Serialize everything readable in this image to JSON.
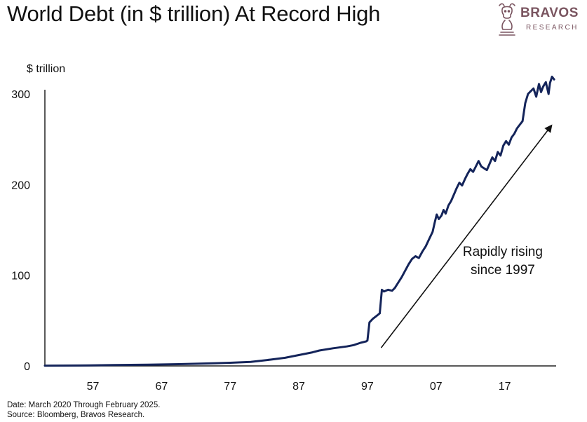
{
  "header": {
    "title": "World Debt (in $ trillion) At Record High"
  },
  "brand": {
    "name": "BRAVOS",
    "subtitle": "RESEARCH",
    "color": "#7a5560",
    "icon": "bull-chess-knight-icon"
  },
  "footer": {
    "date_note": "Date: March 2020 Through February 2025.",
    "source_note": "Source: Bloomberg, Bravos Research."
  },
  "chart_data": {
    "type": "line",
    "title": "World Debt (in $ trillion) At Record High",
    "ylabel": "$ trillion",
    "xlabel": "",
    "xlim": [
      1950,
      2024.5
    ],
    "ylim": [
      0,
      300
    ],
    "xticks": [
      {
        "value": 1957,
        "label": "57"
      },
      {
        "value": 1967,
        "label": "67"
      },
      {
        "value": 1977,
        "label": "77"
      },
      {
        "value": 1987,
        "label": "87"
      },
      {
        "value": 1997,
        "label": "97"
      },
      {
        "value": 2007,
        "label": "07"
      },
      {
        "value": 2017,
        "label": "17"
      }
    ],
    "yticks": [
      0,
      100,
      200,
      300
    ],
    "grid": false,
    "line_color": "#14245a",
    "series": [
      {
        "x": [
          1950,
          1955,
          1960,
          1965,
          1970,
          1975,
          1977,
          1980,
          1983,
          1985,
          1987,
          1989,
          1990,
          1992,
          1994,
          1995,
          1996,
          1996.8,
          1997,
          1997.3,
          1997.8,
          1998.3,
          1998.8,
          1999.1,
          1999.4,
          2000,
          2000.6,
          2001,
          2001.5,
          2002,
          2002.5,
          2003,
          2003.5,
          2004,
          2004.5,
          2005,
          2005.5,
          2006,
          2006.5,
          2006.8,
          2007.1,
          2007.4,
          2007.8,
          2008.1,
          2008.4,
          2008.8,
          2009.2,
          2009.6,
          2010,
          2010.4,
          2010.8,
          2011.2,
          2011.6,
          2012,
          2012.4,
          2012.8,
          2013.2,
          2013.6,
          2014,
          2014.4,
          2014.8,
          2015.2,
          2015.6,
          2016,
          2016.4,
          2016.8,
          2017.2,
          2017.6,
          2018,
          2018.4,
          2018.8,
          2019.2,
          2019.6,
          2020,
          2020.4,
          2020.8,
          2021.2,
          2021.6,
          2022,
          2022.3,
          2022.6,
          2023,
          2023.4,
          2023.6,
          2023.9,
          2024.2
        ],
        "y": [
          0.3,
          0.5,
          0.9,
          1.3,
          2,
          3,
          3.5,
          4.5,
          7,
          9,
          12,
          15,
          17,
          19.5,
          21.5,
          23,
          25.5,
          27,
          28,
          48,
          52,
          55,
          58,
          84,
          82,
          84,
          83,
          86,
          92,
          98,
          105,
          112,
          118,
          121,
          119,
          126,
          132,
          140,
          148,
          158,
          167,
          162,
          166,
          172,
          168,
          177,
          182,
          189,
          196,
          202,
          199,
          206,
          212,
          217,
          214,
          220,
          226,
          220,
          218,
          216,
          223,
          230,
          226,
          236,
          232,
          243,
          248,
          244,
          252,
          256,
          262,
          266,
          270,
          290,
          300,
          303,
          306,
          297,
          311,
          302,
          308,
          313,
          300,
          312,
          319,
          316
        ]
      }
    ],
    "annotation": {
      "text_line1": "Rapidly rising",
      "text_line2": "since 1997",
      "arrow_from": {
        "x": 1999,
        "y": 20
      },
      "arrow_to": {
        "x": 2023.8,
        "y": 265
      },
      "text_at": {
        "x": 2011,
        "y": 120
      }
    }
  }
}
